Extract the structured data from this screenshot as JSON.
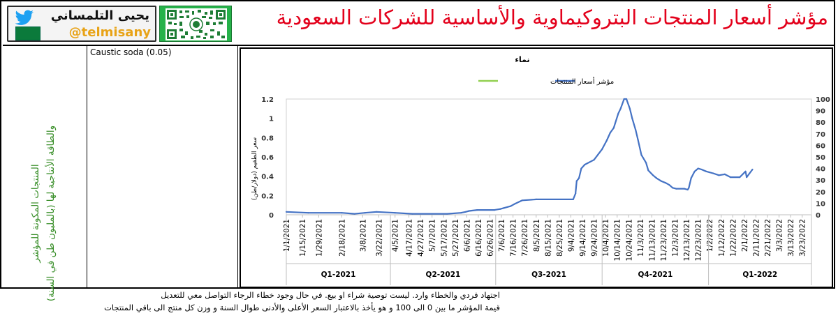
{
  "header": {
    "title": "مؤشر أسعار المنتجات البتروكيماوية والأساسية للشركات السعودية",
    "brand_name": "يحيى التلمساني",
    "brand_handle": "@telmisany"
  },
  "left_panel": {
    "line1": "المنتجات المكونة للمؤشر",
    "line2": "والطاقة الأنتاجية لها (بالمليون طن في السنة)"
  },
  "product": {
    "label": "Caustic soda (0.05)"
  },
  "footer": {
    "line1": "اجتهاد فردي والخطاء وارد. ليست توصية شراء او بيع. في حال وجود خطاء الرجاء التواصل معي للتعديل",
    "line2": "قيمة المؤشر ما بين 0 الى 100 و هو يأخذ بالاعتبار السعر الأعلى والأدنى طوال السنة و وزن كل منتج الى باقي المنتجات"
  },
  "colors": {
    "title": "#e3001b",
    "series_price": "#4472c4",
    "series_index": "#92d050",
    "left_text": "#3a8f2a"
  },
  "chart_data": {
    "type": "line",
    "title": "نماء",
    "ylabel": "سعر الطقيم (دولار/طن)",
    "xlabel": "",
    "ylim": [
      0,
      1.2
    ],
    "y_ticks": [
      "0",
      "0.2",
      "0.4",
      "0.6",
      "0.8",
      "1",
      "1.2"
    ],
    "y2lim": [
      0,
      100
    ],
    "y2_ticks": [
      "0",
      "10",
      "20",
      "30",
      "40",
      "50",
      "60",
      "70",
      "80",
      "90",
      "100"
    ],
    "grid": false,
    "legend_position": "top",
    "x_tick_labels": [
      "1/1/2021",
      "1/15/2021",
      "1/29/2021",
      "2/18/2021",
      "3/8/2021",
      "3/22/2021",
      "4/5/2021",
      "4/17/2021",
      "4/27/2021",
      "5/7/2021",
      "5/17/2021",
      "5/27/2021",
      "6/6/2021",
      "6/16/2021",
      "6/26/2021",
      "7/6/2021",
      "7/16/2021",
      "7/26/2021",
      "8/5/2021",
      "8/15/2021",
      "8/25/2021",
      "9/4/2021",
      "9/14/2021",
      "9/24/2021",
      "10/4/2021",
      "10/14/2021",
      "10/24/2021",
      "11/3/2021",
      "11/13/2021",
      "11/23/2021",
      "12/3/2021",
      "12/13/2021",
      "12/23/2021",
      "1/2/2022",
      "1/12/2022",
      "1/22/2022",
      "2/1/2022",
      "2/11/2022",
      "2/21/2022",
      "3/3/2022",
      "3/13/2022",
      "3/23/2022"
    ],
    "quarters": [
      "Q1-2021",
      "Q2-2021",
      "Q3-2021",
      "Q4-2021",
      "Q1-2022"
    ],
    "series": [
      {
        "name": "مؤشر أسعار المنتجات",
        "axis": "left",
        "x": [
          "2021-01-01",
          "2021-01-20",
          "2021-02-18",
          "2021-03-01",
          "2021-03-10",
          "2021-03-20",
          "2021-04-05",
          "2021-04-20",
          "2021-05-20",
          "2021-06-01",
          "2021-06-05",
          "2021-06-08",
          "2021-06-15",
          "2021-06-30",
          "2021-07-05",
          "2021-07-08",
          "2021-07-14",
          "2021-07-17",
          "2021-07-24",
          "2021-08-05",
          "2021-09-06",
          "2021-09-08",
          "2021-09-09",
          "2021-09-11",
          "2021-09-13",
          "2021-09-16",
          "2021-09-24",
          "2021-10-01",
          "2021-10-05",
          "2021-10-08",
          "2021-10-11",
          "2021-10-15",
          "2021-10-17",
          "2021-10-20",
          "2021-10-22",
          "2021-10-25",
          "2021-10-27",
          "2021-10-30",
          "2021-11-01",
          "2021-11-04",
          "2021-11-08",
          "2021-11-10",
          "2021-11-14",
          "2021-11-17",
          "2021-11-21",
          "2021-11-25",
          "2021-11-28",
          "2021-12-01",
          "2021-12-04",
          "2021-12-11",
          "2021-12-14",
          "2021-12-15",
          "2021-12-17",
          "2021-12-20",
          "2021-12-23",
          "2021-12-26",
          "2021-12-30",
          "2022-01-05",
          "2022-01-10",
          "2022-01-15",
          "2022-01-20",
          "2022-01-28",
          "2022-02-02",
          "2022-02-03",
          "2022-02-08"
        ],
        "values": [
          0.03,
          0.02,
          0.02,
          0.01,
          0.02,
          0.03,
          0.02,
          0.01,
          0.01,
          0.02,
          0.03,
          0.04,
          0.05,
          0.05,
          0.06,
          0.07,
          0.09,
          0.11,
          0.15,
          0.16,
          0.16,
          0.22,
          0.35,
          0.38,
          0.48,
          0.52,
          0.57,
          0.68,
          0.77,
          0.85,
          0.9,
          1.05,
          1.1,
          1.21,
          1.22,
          1.1,
          1.0,
          0.88,
          0.78,
          0.62,
          0.54,
          0.46,
          0.41,
          0.38,
          0.35,
          0.33,
          0.31,
          0.28,
          0.27,
          0.27,
          0.26,
          0.28,
          0.38,
          0.45,
          0.48,
          0.47,
          0.45,
          0.43,
          0.41,
          0.42,
          0.39,
          0.39,
          0.45,
          0.39,
          0.47
        ]
      },
      {
        "name": "",
        "axis": "right",
        "x": [],
        "values": []
      }
    ]
  }
}
